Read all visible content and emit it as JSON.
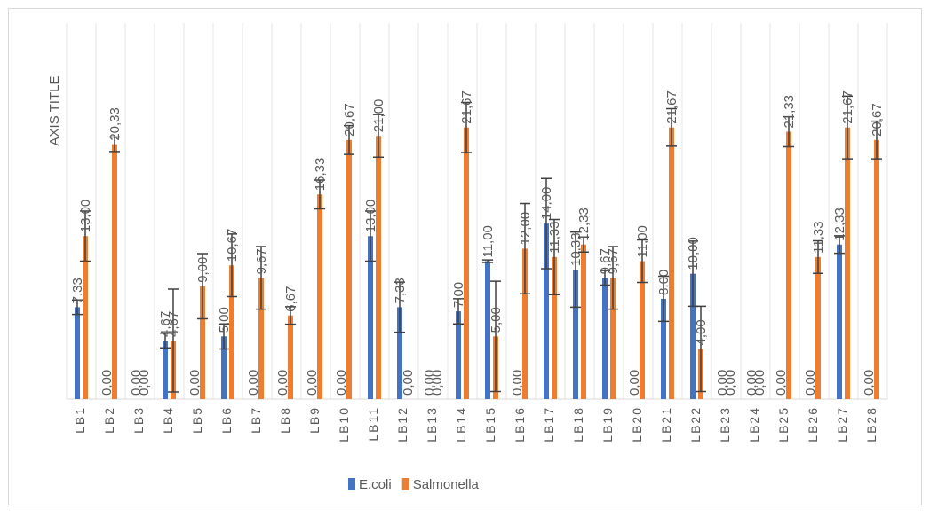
{
  "chart_data": {
    "type": "bar",
    "y_title": "AXIS TITLE",
    "categories": [
      "LB1",
      "LB2",
      "LB3",
      "LB4",
      "LB5",
      "LB6",
      "LB7",
      "LB8",
      "LB9",
      "LB10",
      "LB11",
      "LB12",
      "LB13",
      "LB14",
      "LB15",
      "LB16",
      "LB17",
      "LB18",
      "LB19",
      "LB20",
      "LB21",
      "LB22",
      "LB23",
      "LB24",
      "LB25",
      "LB26",
      "LB27",
      "LB28"
    ],
    "ylim": [
      0,
      30
    ],
    "grid": true,
    "legend": "bottom",
    "series": [
      {
        "name": "E.coli",
        "color": "#4472c4",
        "values": [
          7.33,
          0,
          0,
          4.67,
          0,
          5,
          0,
          0,
          0,
          0,
          13,
          7.33,
          0,
          7,
          11,
          0,
          14,
          10.33,
          9.67,
          0,
          8,
          10,
          0,
          0,
          0,
          0,
          12.33,
          0
        ],
        "value_labels": [
          "7,33",
          "0,00",
          "0,00",
          "4,67",
          "0,00",
          "5,00",
          "0,00",
          "0,00",
          "0,00",
          "0,00",
          "13,00",
          "7,33",
          "0,00",
          "7,00",
          "11,00",
          "0,00",
          "14,00",
          "10,33",
          "9,67",
          "0,00",
          "8,00",
          "10,00",
          "0,00",
          "0,00",
          "0,00",
          "0,00",
          "12,33",
          "0,00"
        ],
        "errors": [
          0.58,
          0,
          0,
          0.58,
          0,
          1,
          0,
          0,
          0,
          0,
          2,
          2,
          0,
          1,
          0.1,
          0,
          3.6,
          3,
          0.58,
          0,
          1.8,
          2.6,
          0,
          0,
          0,
          0,
          0.7,
          0
        ]
      },
      {
        "name": "Salmonella",
        "color": "#ed7d31",
        "values": [
          13,
          20.33,
          0,
          4.67,
          9,
          10.67,
          9.67,
          6.67,
          16.33,
          20.67,
          21,
          0,
          0,
          21.67,
          5,
          12,
          11.33,
          12.33,
          9.67,
          11,
          21.67,
          4,
          0,
          0,
          21.33,
          11.33,
          21.67,
          20.67
        ],
        "value_labels": [
          "13,00",
          "20,33",
          "0,00",
          "4,67",
          "9,00",
          "10,67",
          "9,67",
          "6,67",
          "16,33",
          "20,67",
          "21,00",
          "0,00",
          "0,00",
          "21,67",
          "5,00",
          "12,00",
          "11,33",
          "12,33",
          "9,67",
          "11,00",
          "21,67",
          "4,00",
          "0,00",
          "0,00",
          "21,33",
          "11,33",
          "21,67",
          "20,67"
        ],
        "errors": [
          2,
          0.58,
          0,
          4.1,
          2.6,
          2.5,
          2.5,
          0.7,
          1.15,
          1.15,
          1.7,
          0,
          0,
          2,
          4.4,
          3.6,
          3,
          0.6,
          2.5,
          1.7,
          1.5,
          3.4,
          0,
          0,
          1.2,
          1.3,
          2.5,
          1.5
        ]
      }
    ]
  }
}
